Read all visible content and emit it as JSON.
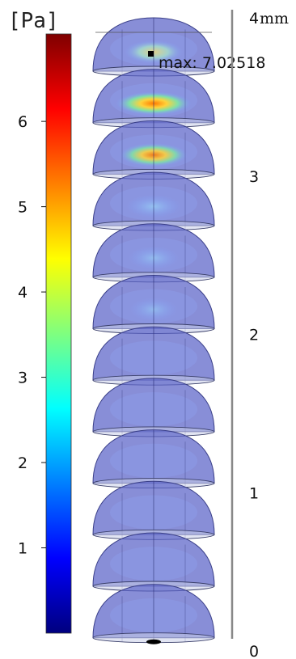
{
  "colorbar": {
    "unit": "[Pa]",
    "ticks": [
      {
        "value": 1,
        "label": "1"
      },
      {
        "value": 2,
        "label": "2"
      },
      {
        "value": 3,
        "label": "3"
      },
      {
        "value": 4,
        "label": "4"
      },
      {
        "value": 5,
        "label": "5"
      },
      {
        "value": 6,
        "label": "6"
      }
    ],
    "range": [
      0,
      7.02518
    ],
    "colors": [
      "#00007f",
      "#0000ff",
      "#007fff",
      "#00ffff",
      "#7fff7f",
      "#ffff00",
      "#ff7f00",
      "#ff0000",
      "#7f0000"
    ]
  },
  "max_annotation": {
    "text": "max: 7.02518"
  },
  "z_axis": {
    "unit": "mm",
    "ticks": [
      {
        "value": 0,
        "label": "0"
      },
      {
        "value": 1,
        "label": "1"
      },
      {
        "value": 2,
        "label": "2"
      },
      {
        "value": 3,
        "label": "3"
      },
      {
        "value": 4,
        "label": "4"
      }
    ]
  },
  "slices": {
    "count": 12,
    "base_color": "#5a62c8",
    "hotspots": [
      {
        "slice": 0,
        "intensity": 0.45
      },
      {
        "slice": 1,
        "intensity": 1.0
      },
      {
        "slice": 2,
        "intensity": 0.75
      },
      {
        "slice": 3,
        "intensity": 0.35
      },
      {
        "slice": 4,
        "intensity": 0.2
      },
      {
        "slice": 5,
        "intensity": 0.1
      }
    ]
  }
}
